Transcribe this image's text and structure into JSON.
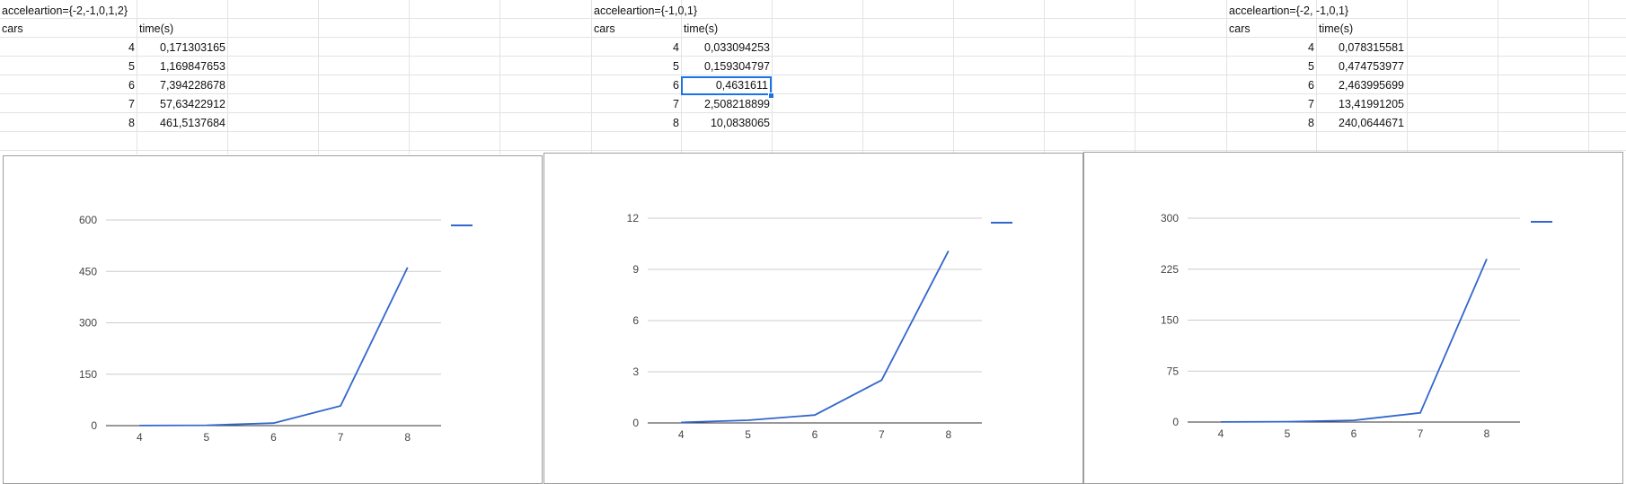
{
  "tables": [
    {
      "title": "acceleartion={-2,-1,0,1,2}",
      "col_cars": "cars",
      "col_time": "time(s)",
      "rows": [
        {
          "cars": "4",
          "time": "0,171303165"
        },
        {
          "cars": "5",
          "time": "1,169847653"
        },
        {
          "cars": "6",
          "time": "7,394228678"
        },
        {
          "cars": "7",
          "time": "57,63422912"
        },
        {
          "cars": "8",
          "time": "461,5137684"
        }
      ]
    },
    {
      "title": "acceleartion={-1,0,1}",
      "col_cars": "cars",
      "col_time": "time(s)",
      "rows": [
        {
          "cars": "4",
          "time": "0,033094253"
        },
        {
          "cars": "5",
          "time": "0,159304797"
        },
        {
          "cars": "6",
          "time": "0,4631611"
        },
        {
          "cars": "7",
          "time": "2,508218899"
        },
        {
          "cars": "8",
          "time": "10,0838065"
        }
      ]
    },
    {
      "title": "acceleartion={-2, -1,0,1}",
      "col_cars": "cars",
      "col_time": "time(s)",
      "rows": [
        {
          "cars": "4",
          "time": "0,078315581"
        },
        {
          "cars": "5",
          "time": "0,474753977"
        },
        {
          "cars": "6",
          "time": "2,463995699"
        },
        {
          "cars": "7",
          "time": "13,41991205"
        },
        {
          "cars": "8",
          "time": "240,0644671"
        }
      ]
    }
  ],
  "line_color": "#3366cc",
  "selected_cell_color": "#1a73e8",
  "chart_data": [
    {
      "type": "line",
      "x": [
        4,
        5,
        6,
        7,
        8
      ],
      "series": [
        {
          "values": [
            0.171303165,
            1.169847653,
            7.394228678,
            57.63422912,
            461.5137684
          ]
        }
      ],
      "x_ticks": [
        "4",
        "5",
        "6",
        "7",
        "8"
      ],
      "y_ticks": [
        0,
        150,
        300,
        450,
        600
      ],
      "y_tick_labels": [
        "0",
        "150",
        "300",
        "450",
        "600"
      ],
      "ylim": [
        0,
        600
      ],
      "grid": true,
      "legend": "right"
    },
    {
      "type": "line",
      "x": [
        4,
        5,
        6,
        7,
        8
      ],
      "series": [
        {
          "values": [
            0.033094253,
            0.159304797,
            0.4631611,
            2.508218899,
            10.0838065
          ]
        }
      ],
      "x_ticks": [
        "4",
        "5",
        "6",
        "7",
        "8"
      ],
      "y_ticks": [
        0,
        3,
        6,
        9,
        12
      ],
      "y_tick_labels": [
        "0",
        "3",
        "6",
        "9",
        "12"
      ],
      "ylim": [
        0,
        12
      ],
      "grid": true,
      "legend": "right"
    },
    {
      "type": "line",
      "x": [
        4,
        5,
        6,
        7,
        8
      ],
      "series": [
        {
          "values": [
            0.078315581,
            0.474753977,
            2.463995699,
            13.41991205,
            240.0644671
          ]
        }
      ],
      "x_ticks": [
        "4",
        "5",
        "6",
        "7",
        "8"
      ],
      "y_ticks": [
        0,
        75,
        150,
        225,
        300
      ],
      "y_tick_labels": [
        "0",
        "75",
        "150",
        "225",
        "300"
      ],
      "ylim": [
        0,
        300
      ],
      "grid": true,
      "legend": "right"
    }
  ]
}
